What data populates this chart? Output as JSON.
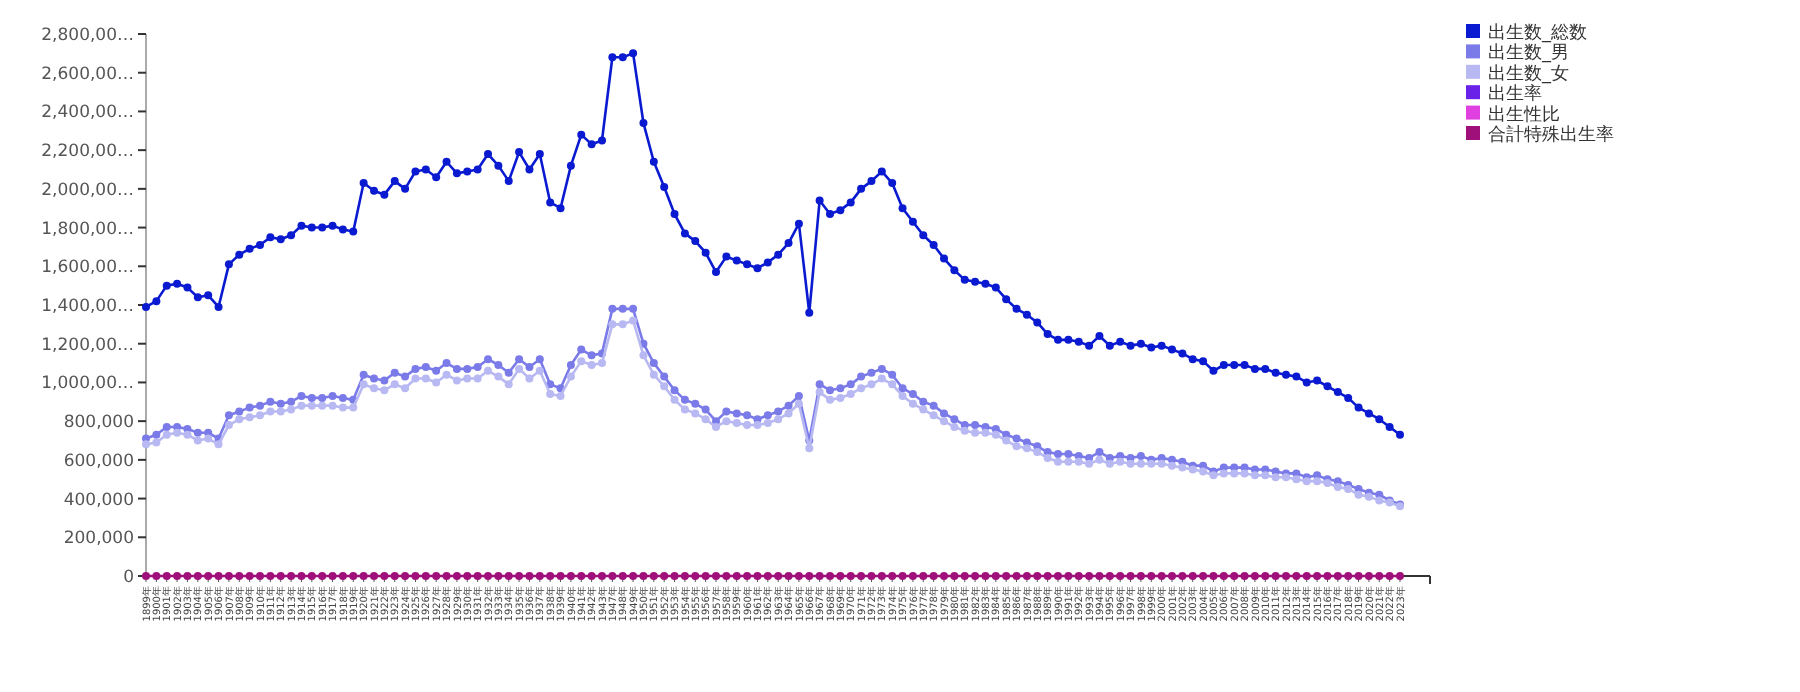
{
  "chart_data": {
    "type": "line",
    "categories": [
      "1899年",
      "1900年",
      "1901年",
      "1902年",
      "1903年",
      "1904年",
      "1905年",
      "1906年",
      "1907年",
      "1908年",
      "1909年",
      "1910年",
      "1911年",
      "1912年",
      "1913年",
      "1914年",
      "1915年",
      "1916年",
      "1917年",
      "1918年",
      "1919年",
      "1920年",
      "1921年",
      "1922年",
      "1923年",
      "1924年",
      "1925年",
      "1926年",
      "1927年",
      "1928年",
      "1929年",
      "1930年",
      "1931年",
      "1932年",
      "1933年",
      "1934年",
      "1935年",
      "1936年",
      "1937年",
      "1938年",
      "1939年",
      "1940年",
      "1941年",
      "1942年",
      "1943年",
      "1947年",
      "1948年",
      "1949年",
      "1950年",
      "1951年",
      "1952年",
      "1953年",
      "1954年",
      "1955年",
      "1956年",
      "1957年",
      "1958年",
      "1959年",
      "1960年",
      "1961年",
      "1962年",
      "1963年",
      "1964年",
      "1965年",
      "1966年",
      "1967年",
      "1968年",
      "1969年",
      "1970年",
      "1971年",
      "1972年",
      "1973年",
      "1974年",
      "1975年",
      "1976年",
      "1977年",
      "1978年",
      "1979年",
      "1980年",
      "1981年",
      "1982年",
      "1983年",
      "1984年",
      "1985年",
      "1986年",
      "1987年",
      "1988年",
      "1989年",
      "1990年",
      "1991年",
      "1992年",
      "1993年",
      "1994年",
      "1995年",
      "1996年",
      "1997年",
      "1998年",
      "1999年",
      "2000年",
      "2001年",
      "2002年",
      "2003年",
      "2004年",
      "2005年",
      "2006年",
      "2007年",
      "2008年",
      "2009年",
      "2010年",
      "2011年",
      "2012年",
      "2013年",
      "2014年",
      "2015年",
      "2016年",
      "2017年",
      "2018年",
      "2019年",
      "2020年",
      "2021年",
      "2022年",
      "2023年"
    ],
    "series": [
      {
        "name": "出生数_総数",
        "color": "#0a1ad0",
        "values": [
          1390000,
          1420000,
          1500000,
          1510000,
          1490000,
          1440000,
          1450000,
          1390000,
          1610000,
          1660000,
          1690000,
          1710000,
          1750000,
          1740000,
          1760000,
          1810000,
          1800000,
          1800000,
          1810000,
          1790000,
          1780000,
          2030000,
          1990000,
          1970000,
          2040000,
          2000000,
          2090000,
          2100000,
          2060000,
          2140000,
          2080000,
          2090000,
          2100000,
          2180000,
          2120000,
          2040000,
          2190000,
          2100000,
          2180000,
          1930000,
          1900000,
          2120000,
          2280000,
          2230000,
          2250000,
          2680000,
          2680000,
          2700000,
          2340000,
          2140000,
          2010000,
          1870000,
          1770000,
          1730000,
          1670000,
          1570000,
          1650000,
          1630000,
          1610000,
          1590000,
          1620000,
          1660000,
          1720000,
          1820000,
          1360000,
          1940000,
          1870000,
          1890000,
          1930000,
          2000000,
          2040000,
          2090000,
          2030000,
          1900000,
          1830000,
          1760000,
          1710000,
          1640000,
          1580000,
          1530000,
          1520000,
          1510000,
          1490000,
          1430000,
          1380000,
          1350000,
          1310000,
          1250000,
          1220000,
          1220000,
          1210000,
          1190000,
          1240000,
          1190000,
          1210000,
          1190000,
          1200000,
          1180000,
          1190000,
          1170000,
          1150000,
          1120000,
          1110000,
          1060000,
          1090000,
          1090000,
          1090000,
          1070000,
          1070000,
          1050000,
          1040000,
          1030000,
          1000000,
          1010000,
          980000,
          950000,
          920000,
          870000,
          840000,
          810000,
          770000,
          730000
        ]
      },
      {
        "name": "出生数_男",
        "color": "#7a7ae8",
        "values": [
          710000,
          730000,
          770000,
          770000,
          760000,
          740000,
          740000,
          710000,
          830000,
          850000,
          870000,
          880000,
          900000,
          890000,
          900000,
          930000,
          920000,
          920000,
          930000,
          920000,
          910000,
          1040000,
          1020000,
          1010000,
          1050000,
          1030000,
          1070000,
          1080000,
          1060000,
          1100000,
          1070000,
          1070000,
          1080000,
          1120000,
          1090000,
          1050000,
          1120000,
          1080000,
          1120000,
          990000,
          970000,
          1090000,
          1170000,
          1140000,
          1150000,
          1380000,
          1380000,
          1380000,
          1200000,
          1100000,
          1030000,
          960000,
          910000,
          890000,
          860000,
          800000,
          850000,
          840000,
          830000,
          810000,
          830000,
          850000,
          880000,
          930000,
          700000,
          990000,
          960000,
          970000,
          990000,
          1030000,
          1050000,
          1070000,
          1040000,
          970000,
          940000,
          900000,
          880000,
          840000,
          810000,
          780000,
          780000,
          770000,
          760000,
          730000,
          710000,
          690000,
          670000,
          640000,
          630000,
          630000,
          620000,
          610000,
          640000,
          610000,
          620000,
          610000,
          620000,
          600000,
          610000,
          600000,
          590000,
          570000,
          570000,
          540000,
          560000,
          560000,
          560000,
          550000,
          550000,
          540000,
          530000,
          530000,
          510000,
          520000,
          500000,
          490000,
          470000,
          450000,
          430000,
          420000,
          390000,
          370000
        ]
      },
      {
        "name": "出生数_女",
        "color": "#b8b8f2",
        "values": [
          680000,
          690000,
          730000,
          740000,
          730000,
          700000,
          710000,
          680000,
          780000,
          810000,
          820000,
          830000,
          850000,
          850000,
          860000,
          880000,
          880000,
          880000,
          880000,
          870000,
          870000,
          990000,
          970000,
          960000,
          990000,
          970000,
          1020000,
          1020000,
          1000000,
          1040000,
          1010000,
          1020000,
          1020000,
          1060000,
          1030000,
          990000,
          1070000,
          1020000,
          1060000,
          940000,
          930000,
          1030000,
          1110000,
          1090000,
          1100000,
          1300000,
          1300000,
          1320000,
          1140000,
          1040000,
          980000,
          910000,
          860000,
          840000,
          810000,
          770000,
          800000,
          790000,
          780000,
          780000,
          790000,
          810000,
          840000,
          890000,
          660000,
          950000,
          910000,
          920000,
          940000,
          970000,
          990000,
          1020000,
          990000,
          930000,
          890000,
          860000,
          830000,
          800000,
          770000,
          750000,
          740000,
          740000,
          730000,
          700000,
          670000,
          660000,
          640000,
          610000,
          590000,
          590000,
          590000,
          580000,
          600000,
          580000,
          590000,
          580000,
          580000,
          580000,
          580000,
          570000,
          560000,
          550000,
          540000,
          520000,
          530000,
          530000,
          530000,
          520000,
          520000,
          510000,
          510000,
          500000,
          490000,
          490000,
          480000,
          460000,
          450000,
          420000,
          410000,
          390000,
          380000,
          360000
        ]
      },
      {
        "name": "出生率",
        "color": "#6a22e8",
        "values": [
          null,
          null,
          null,
          null,
          null,
          null,
          null,
          null,
          null,
          null,
          null,
          null,
          null,
          null,
          null,
          null,
          null,
          null,
          null,
          null,
          null,
          null,
          null,
          null,
          null,
          null,
          null,
          null,
          null,
          null,
          null,
          null,
          null,
          null,
          null,
          null,
          null,
          null,
          null,
          null,
          null,
          null,
          null,
          null,
          null,
          null,
          null,
          null,
          null,
          null,
          null,
          null,
          null,
          null,
          null,
          null,
          null,
          null,
          null,
          null,
          null,
          null,
          null,
          null,
          null,
          null,
          null,
          null,
          null,
          null,
          null,
          null,
          null,
          null,
          null,
          null,
          null,
          null,
          null,
          null,
          null,
          null,
          null,
          null,
          null,
          null,
          null,
          null,
          null,
          null,
          null,
          null,
          null,
          null,
          null,
          null,
          null,
          null,
          null,
          null,
          null,
          null,
          null,
          null,
          null,
          null,
          null,
          null,
          null,
          null,
          null,
          null,
          null,
          null,
          null,
          null,
          null,
          null,
          null,
          null,
          null,
          null
        ]
      },
      {
        "name": "出生性比",
        "color": "#e040e0",
        "values": [
          null,
          null,
          null,
          null,
          null,
          null,
          null,
          null,
          null,
          null,
          null,
          null,
          null,
          null,
          null,
          null,
          null,
          null,
          null,
          null,
          null,
          null,
          null,
          null,
          null,
          null,
          null,
          null,
          null,
          null,
          null,
          null,
          null,
          null,
          null,
          null,
          null,
          null,
          null,
          null,
          null,
          null,
          null,
          null,
          null,
          null,
          null,
          null,
          null,
          null,
          null,
          null,
          null,
          null,
          null,
          null,
          null,
          null,
          null,
          null,
          null,
          null,
          null,
          null,
          null,
          null,
          null,
          null,
          null,
          null,
          null,
          null,
          null,
          null,
          null,
          null,
          null,
          null,
          null,
          null,
          null,
          null,
          null,
          null,
          null,
          null,
          null,
          null,
          null,
          null,
          null,
          null,
          null,
          null,
          null,
          null,
          null,
          null,
          null,
          null,
          null,
          null,
          null,
          null,
          null,
          null,
          null,
          null,
          null,
          null,
          null,
          null,
          null,
          null,
          null,
          null,
          null,
          null,
          null,
          null,
          null,
          null
        ]
      },
      {
        "name": "合計特殊出生率",
        "color": "#a0107a",
        "values": [
          0,
          0,
          0,
          0,
          0,
          0,
          0,
          0,
          0,
          0,
          0,
          0,
          0,
          0,
          0,
          0,
          0,
          0,
          0,
          0,
          0,
          0,
          0,
          0,
          0,
          0,
          0,
          0,
          0,
          0,
          0,
          0,
          0,
          0,
          0,
          0,
          0,
          0,
          0,
          0,
          0,
          0,
          0,
          0,
          0,
          0,
          0,
          0,
          0,
          0,
          0,
          0,
          0,
          0,
          0,
          0,
          0,
          0,
          0,
          0,
          0,
          0,
          0,
          0,
          0,
          0,
          0,
          0,
          0,
          0,
          0,
          0,
          0,
          0,
          0,
          0,
          0,
          0,
          0,
          0,
          0,
          0,
          0,
          0,
          0,
          0,
          0,
          0,
          0,
          0,
          0,
          0,
          0,
          0,
          0,
          0,
          0,
          0,
          0,
          0,
          0,
          0,
          0,
          0,
          0,
          0,
          0,
          0,
          0,
          0,
          0,
          0,
          0,
          0,
          0,
          0,
          0,
          0,
          0,
          0,
          0,
          0
        ]
      }
    ],
    "ylim": [
      0,
      2800000
    ],
    "yticks": [
      0,
      {
        "value": 200000,
        "label": "200,000"
      },
      {
        "value": 400000,
        "label": "400,000"
      },
      {
        "value": 600000,
        "label": "600,000"
      },
      {
        "value": 800000,
        "label": "800,000"
      },
      {
        "value": 1000000,
        "label": "1,000,00…"
      },
      {
        "value": 1200000,
        "label": "1,200,00…"
      },
      {
        "value": 1400000,
        "label": "1,400,00…"
      },
      {
        "value": 1600000,
        "label": "1,600,00…"
      },
      {
        "value": 1800000,
        "label": "1,800,00…"
      },
      {
        "value": 2000000,
        "label": "2,000,00…"
      },
      {
        "value": 2200000,
        "label": "2,200,00…"
      },
      {
        "value": 2400000,
        "label": "2,400,00…"
      },
      {
        "value": 2600000,
        "label": "2,600,00…"
      },
      {
        "value": 2800000,
        "label": "2,800,00…"
      }
    ],
    "marker": "circle",
    "grid": false,
    "legend": "top right"
  }
}
